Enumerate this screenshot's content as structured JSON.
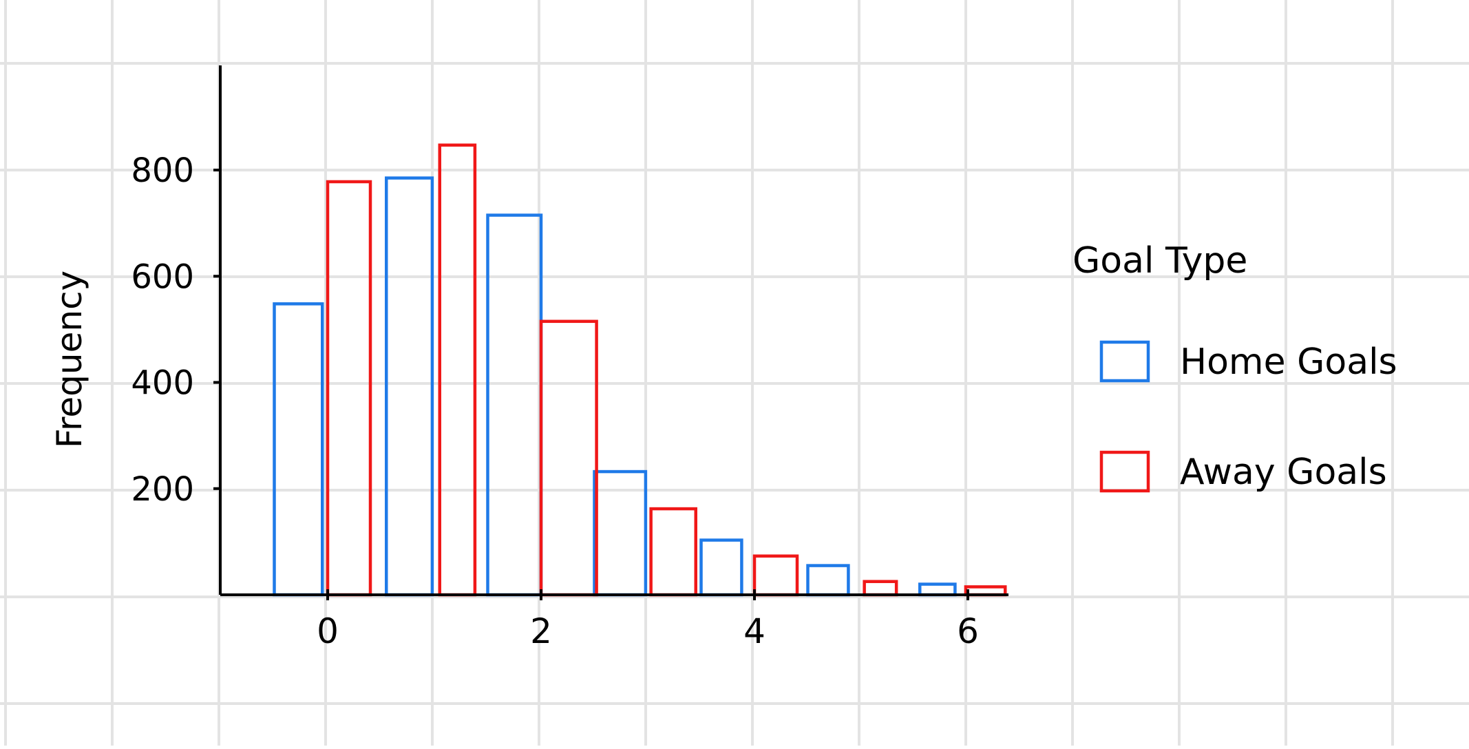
{
  "colors": {
    "background": "#ffffff",
    "grid": "#e3e3e3",
    "axis": "#000000",
    "home": "#1f7ae8",
    "away": "#f01818"
  },
  "legend": {
    "title": "Goal Type",
    "placement": "right"
  },
  "chart_data": {
    "type": "bar",
    "title": "",
    "xlabel": "",
    "ylabel": "Frequency",
    "xlim": [
      -1,
      7
    ],
    "ylim": [
      0,
      1000
    ],
    "x_ticks": [
      0,
      2,
      4,
      6
    ],
    "y_ticks": [
      200,
      400,
      600,
      800
    ],
    "grid": true,
    "series": [
      {
        "name": "Home Goals",
        "color": "#1f7ae8",
        "bars": [
          {
            "x0": -0.5,
            "x1": -0.05,
            "value": 548
          },
          {
            "x0": 0.55,
            "x1": 0.98,
            "value": 785
          },
          {
            "x0": 1.5,
            "x1": 2.0,
            "value": 715
          },
          {
            "x0": 2.5,
            "x1": 2.98,
            "value": 232
          },
          {
            "x0": 3.5,
            "x1": 3.88,
            "value": 103
          },
          {
            "x0": 4.5,
            "x1": 4.88,
            "value": 55
          },
          {
            "x0": 5.55,
            "x1": 5.88,
            "value": 20
          }
        ]
      },
      {
        "name": "Away Goals",
        "color": "#f01818",
        "bars": [
          {
            "x0": 0.0,
            "x1": 0.4,
            "value": 778
          },
          {
            "x0": 1.05,
            "x1": 1.38,
            "value": 847
          },
          {
            "x0": 2.0,
            "x1": 2.52,
            "value": 515
          },
          {
            "x0": 3.03,
            "x1": 3.45,
            "value": 162
          },
          {
            "x0": 4.0,
            "x1": 4.4,
            "value": 73
          },
          {
            "x0": 5.03,
            "x1": 5.33,
            "value": 25
          },
          {
            "x0": 5.98,
            "x1": 6.35,
            "value": 15
          }
        ]
      }
    ]
  }
}
